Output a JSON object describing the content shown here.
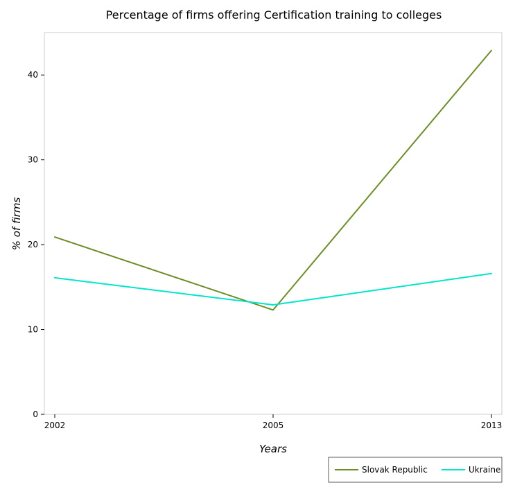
{
  "chart_data": {
    "type": "line",
    "title": "Percentage of firms offering Certification training to colleges",
    "xlabel": "Years",
    "ylabel": "% of firms",
    "categories": [
      "2002",
      "2005",
      "2013"
    ],
    "ylim": [
      0,
      45
    ],
    "yticks": [
      0,
      10,
      20,
      30,
      40
    ],
    "grid": false,
    "legend_position": "bottom-right",
    "series": [
      {
        "name": "Slovak Republic",
        "color": "#6b8e23",
        "values": [
          20.9,
          12.3,
          42.9
        ]
      },
      {
        "name": "Ukraine",
        "color": "#00e5cc",
        "values": [
          16.1,
          12.9,
          16.6
        ]
      }
    ]
  }
}
